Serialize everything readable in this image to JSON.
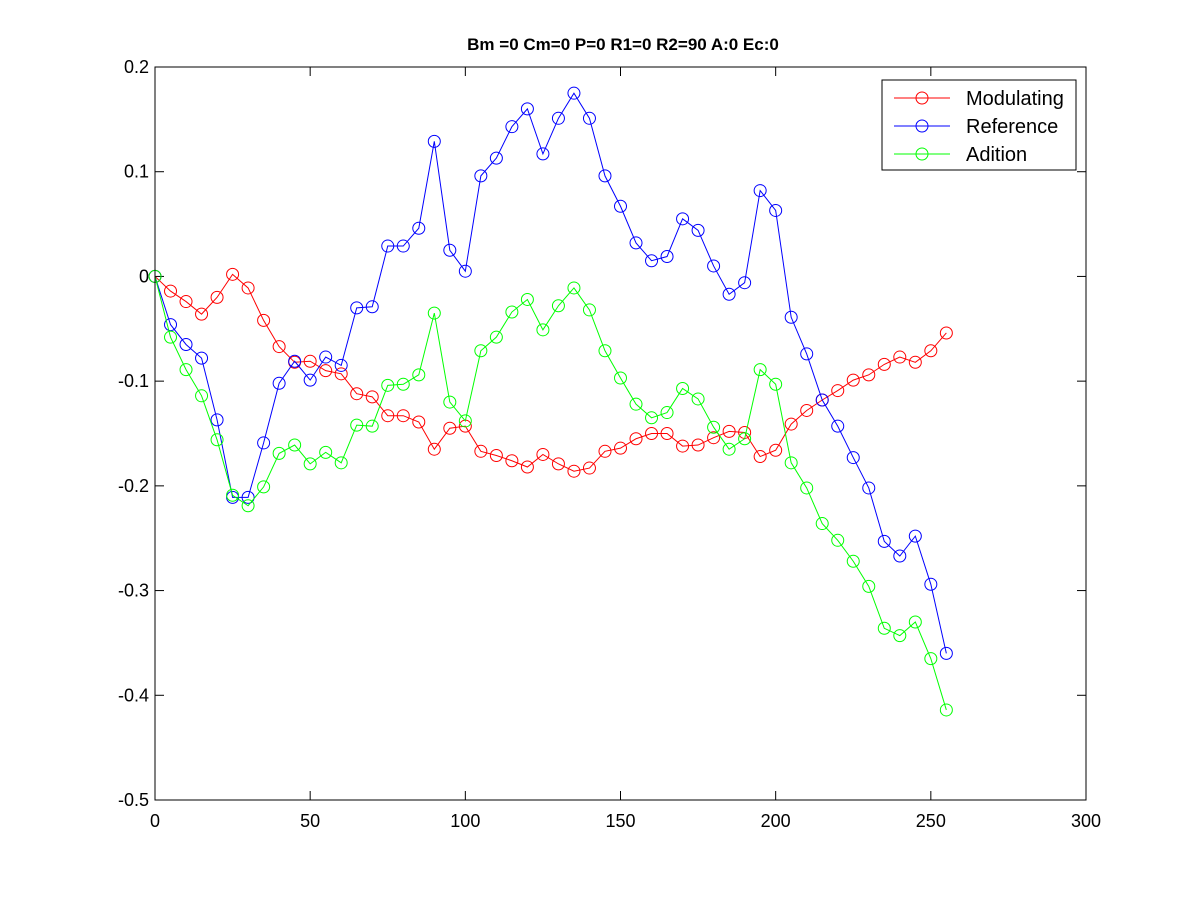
{
  "chart_data": {
    "type": "line",
    "title": "Bm =0  Cm=0  P=0  R1=0  R2=90  A:0  Ec:0",
    "xlabel": "",
    "ylabel": "",
    "xlim": [
      0,
      300
    ],
    "ylim": [
      -0.5,
      0.2
    ],
    "x_ticks": [
      0,
      50,
      100,
      150,
      200,
      250,
      300
    ],
    "y_ticks": [
      0.2,
      0.1,
      0,
      -0.1,
      -0.2,
      -0.3,
      -0.4,
      -0.5
    ],
    "x_tick_labels": [
      "0",
      "50",
      "100",
      "150",
      "200",
      "250",
      "300"
    ],
    "y_tick_labels": [
      "0.2",
      "0.1",
      "0",
      "-0.1",
      "-0.2",
      "-0.3",
      "-0.4",
      "-0.5"
    ],
    "grid": false,
    "legend_position": "top-right",
    "marker": "circle",
    "x": [
      0,
      5,
      10,
      15,
      20,
      25,
      30,
      35,
      40,
      45,
      50,
      55,
      60,
      65,
      70,
      75,
      80,
      85,
      90,
      95,
      100,
      105,
      110,
      115,
      120,
      125,
      130,
      135,
      140,
      145,
      150,
      155,
      160,
      165,
      170,
      175,
      180,
      185,
      190,
      195,
      200,
      205,
      210,
      215,
      220,
      225,
      230,
      235,
      240,
      245,
      250,
      255
    ],
    "series": [
      {
        "name": "Modulating",
        "color": "#ff0000",
        "values": [
          0.0,
          -0.014,
          -0.024,
          -0.036,
          -0.02,
          0.002,
          -0.011,
          -0.042,
          -0.067,
          -0.082,
          -0.081,
          -0.09,
          -0.093,
          -0.112,
          -0.115,
          -0.133,
          -0.133,
          -0.139,
          -0.165,
          -0.145,
          -0.143,
          -0.167,
          -0.171,
          -0.176,
          -0.182,
          -0.17,
          -0.179,
          -0.186,
          -0.183,
          -0.167,
          -0.164,
          -0.155,
          -0.15,
          -0.15,
          -0.162,
          -0.161,
          -0.154,
          -0.148,
          -0.149,
          -0.172,
          -0.166,
          -0.141,
          -0.128,
          -0.118,
          -0.109,
          -0.099,
          -0.094,
          -0.084,
          -0.077,
          -0.082,
          -0.071,
          -0.054
        ]
      },
      {
        "name": "Reference",
        "color": "#0000ff",
        "values": [
          0.0,
          -0.046,
          -0.065,
          -0.078,
          -0.137,
          -0.211,
          -0.211,
          -0.159,
          -0.102,
          -0.081,
          -0.099,
          -0.077,
          -0.085,
          -0.03,
          -0.029,
          0.029,
          0.029,
          0.046,
          0.129,
          0.025,
          0.005,
          0.096,
          0.113,
          0.143,
          0.16,
          0.117,
          0.151,
          0.175,
          0.151,
          0.096,
          0.067,
          0.032,
          0.015,
          0.019,
          0.055,
          0.044,
          0.01,
          -0.017,
          -0.006,
          0.082,
          0.063,
          -0.039,
          -0.074,
          -0.118,
          -0.143,
          -0.173,
          -0.202,
          -0.253,
          -0.267,
          -0.248,
          -0.294,
          -0.36
        ]
      },
      {
        "name": "Adition",
        "color": "#00ff00",
        "values": [
          0.0,
          -0.058,
          -0.089,
          -0.114,
          -0.156,
          -0.209,
          -0.219,
          -0.201,
          -0.169,
          -0.161,
          -0.179,
          -0.168,
          -0.178,
          -0.142,
          -0.143,
          -0.104,
          -0.103,
          -0.094,
          -0.035,
          -0.12,
          -0.138,
          -0.071,
          -0.058,
          -0.034,
          -0.022,
          -0.051,
          -0.028,
          -0.011,
          -0.032,
          -0.071,
          -0.097,
          -0.122,
          -0.135,
          -0.13,
          -0.107,
          -0.117,
          -0.144,
          -0.165,
          -0.155,
          -0.089,
          -0.103,
          -0.178,
          -0.202,
          -0.236,
          -0.252,
          -0.272,
          -0.296,
          -0.336,
          -0.343,
          -0.33,
          -0.365,
          -0.414
        ]
      }
    ]
  }
}
